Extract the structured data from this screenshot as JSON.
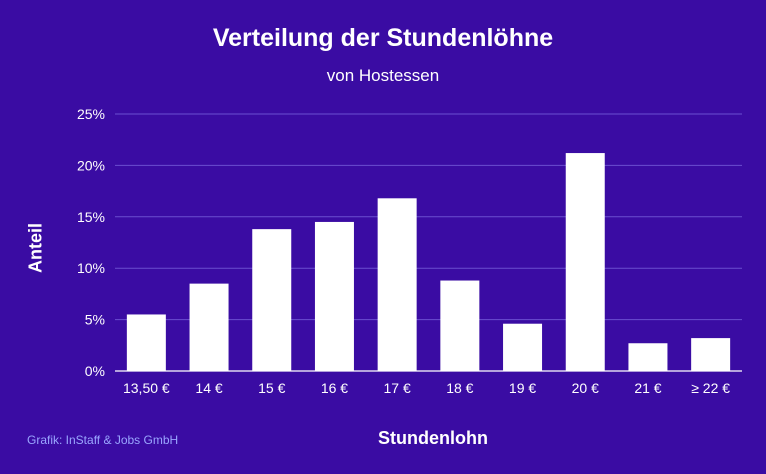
{
  "chart_data": {
    "type": "bar",
    "title": "Verteilung der Stundenlöhne",
    "subtitle": "von Hostessen",
    "xlabel": "Stundenlohn",
    "ylabel": "Anteil",
    "categories": [
      "13,50 €",
      "14 €",
      "15 €",
      "16 €",
      "17 €",
      "18 €",
      "19 €",
      "20 €",
      "21 €",
      "≥ 22 €"
    ],
    "values": [
      5.5,
      8.5,
      13.8,
      14.5,
      16.8,
      8.8,
      4.6,
      21.2,
      2.7,
      3.2
    ],
    "ylim": [
      0,
      25
    ],
    "yticks": [
      0,
      5,
      10,
      15,
      20,
      25
    ],
    "ytick_labels": [
      "0%",
      "5%",
      "10%",
      "15%",
      "20%",
      "25%"
    ],
    "grid": true,
    "colors": {
      "background": "#3a0ca3",
      "bar": "#ffffff",
      "grid": "#6a4fd0",
      "credit": "#9aa6ff"
    }
  },
  "credit": "Grafik: InStaff & Jobs GmbH"
}
